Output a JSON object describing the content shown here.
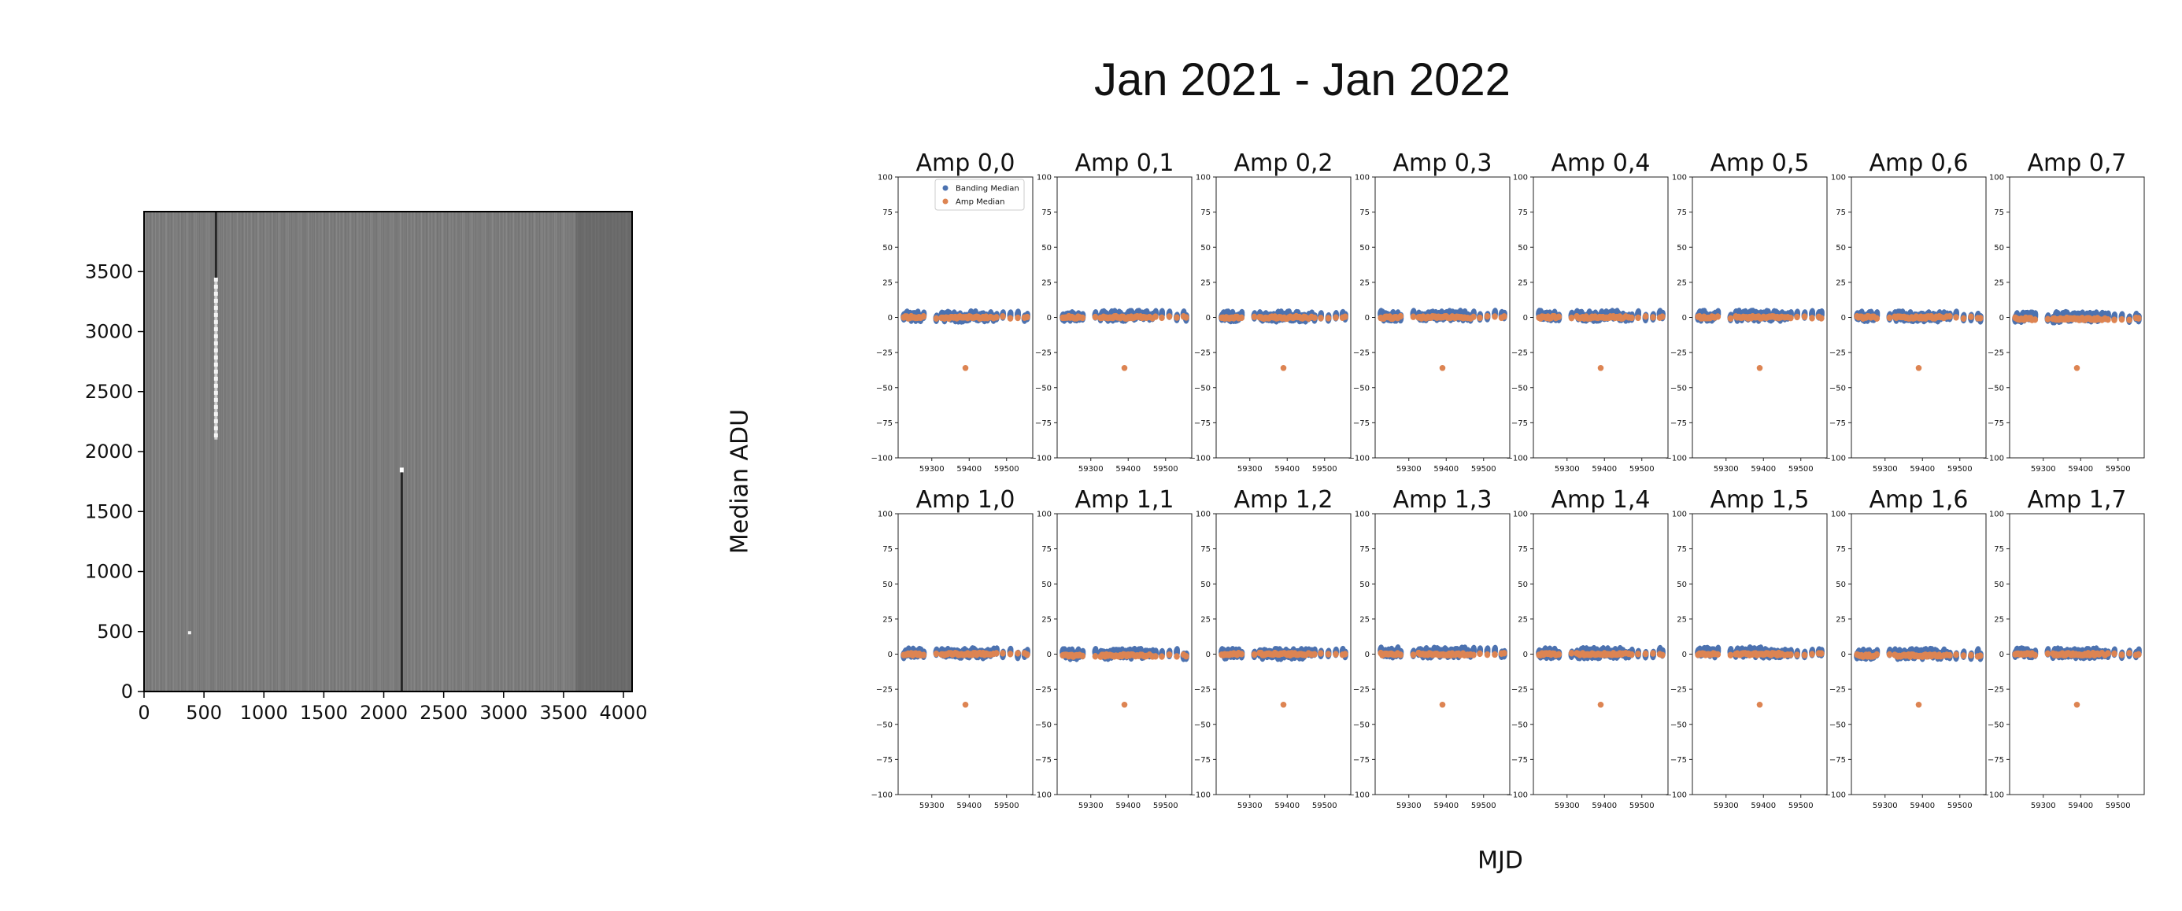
{
  "figure": {
    "title": "Jan 2021 - Jan 2022",
    "xlabel": "MJD",
    "ylabel": "Median ADU"
  },
  "image": {
    "x_ticks": [
      "0",
      "500",
      "1000",
      "1500",
      "2000",
      "2500",
      "3000",
      "3500",
      "4000"
    ],
    "y_ticks": [
      "0",
      "500",
      "1000",
      "1500",
      "2000",
      "2500",
      "3000",
      "3500"
    ],
    "x_range": [
      0,
      4072
    ],
    "y_range": [
      0,
      4000
    ],
    "colormap": "gray",
    "background_level": "medium gray",
    "features": [
      {
        "kind": "dark-column",
        "x": 2150,
        "y_start": 0,
        "y_end": 1830
      },
      {
        "kind": "hot-spot",
        "x": 2150,
        "y": 1840
      },
      {
        "kind": "bright-column-segment",
        "x": 600,
        "y_start": 2100,
        "y_end": 3450
      },
      {
        "kind": "dark-column",
        "x": 600,
        "y_start": 3450,
        "y_end": 4000
      },
      {
        "kind": "bright-pixel",
        "x": 380,
        "y": 490
      },
      {
        "kind": "dark-band",
        "x_start": 3600,
        "x_end": 4072
      }
    ]
  },
  "chart_data": {
    "type": "scatter",
    "layout": "2x8 grid of subplots",
    "xlim": [
      59210,
      59570
    ],
    "ylim": [
      -100,
      100
    ],
    "xticks": [
      "59300",
      "59400",
      "59500"
    ],
    "yticks": [
      "100",
      "75",
      "50",
      "25",
      "0",
      "−25",
      "−50",
      "−75",
      "−100"
    ],
    "legend": {
      "placement": "upper-left of first panel",
      "entries": [
        {
          "label": "Banding Median",
          "color": "#4c72b0"
        },
        {
          "label": "Amp Median",
          "color": "#dd8452"
        }
      ]
    },
    "series_colors": {
      "banding": "#4c72b0",
      "amp": "#dd8452"
    },
    "mjd": [
      59225,
      59229,
      59233,
      59237,
      59241,
      59245,
      59249,
      59253,
      59257,
      59262,
      59266,
      59270,
      59278,
      59312,
      59326,
      59330,
      59334,
      59338,
      59342,
      59346,
      59351,
      59355,
      59359,
      59363,
      59367,
      59371,
      59375,
      59379,
      59383,
      59387,
      59392,
      59396,
      59400,
      59404,
      59408,
      59412,
      59416,
      59420,
      59424,
      59428,
      59433,
      59437,
      59441,
      59445,
      59449,
      59457,
      59465,
      59473,
      59490,
      59510,
      59530,
      59548,
      59555
    ],
    "amp_outlier": {
      "mjd": 59390,
      "value": -36
    },
    "panels": [
      {
        "title": "Amp 0,0",
        "banding_offset": 0.5,
        "amp_offset": 0
      },
      {
        "title": "Amp 0,1",
        "banding_offset": 1.0,
        "amp_offset": 0
      },
      {
        "title": "Amp 0,2",
        "banding_offset": 0.5,
        "amp_offset": 0
      },
      {
        "title": "Amp 0,3",
        "banding_offset": 1.0,
        "amp_offset": 0
      },
      {
        "title": "Amp 0,4",
        "banding_offset": 1.0,
        "amp_offset": 0
      },
      {
        "title": "Amp 0,5",
        "banding_offset": 1.0,
        "amp_offset": 0
      },
      {
        "title": "Amp 0,6",
        "banding_offset": 0.5,
        "amp_offset": 0
      },
      {
        "title": "Amp 0,7",
        "banding_offset": 0.0,
        "amp_offset": -1
      },
      {
        "title": "Amp 1,0",
        "banding_offset": 0.5,
        "amp_offset": 0
      },
      {
        "title": "Amp 1,1",
        "banding_offset": 0.0,
        "amp_offset": -1
      },
      {
        "title": "Amp 1,2",
        "banding_offset": 0.0,
        "amp_offset": 0
      },
      {
        "title": "Amp 1,3",
        "banding_offset": 1.0,
        "amp_offset": 0
      },
      {
        "title": "Amp 1,4",
        "banding_offset": 0.5,
        "amp_offset": 0
      },
      {
        "title": "Amp 1,5",
        "banding_offset": 1.0,
        "amp_offset": 0
      },
      {
        "title": "Amp 1,6",
        "banding_offset": 0.0,
        "amp_offset": -1
      },
      {
        "title": "Amp 1,7",
        "banding_offset": 0.5,
        "amp_offset": 0
      }
    ],
    "series": [
      {
        "name": "Banding Median",
        "values_note_ref": "banding_offset"
      },
      {
        "name": "Amp Median",
        "values_note_ref": "amp_offset"
      }
    ]
  }
}
